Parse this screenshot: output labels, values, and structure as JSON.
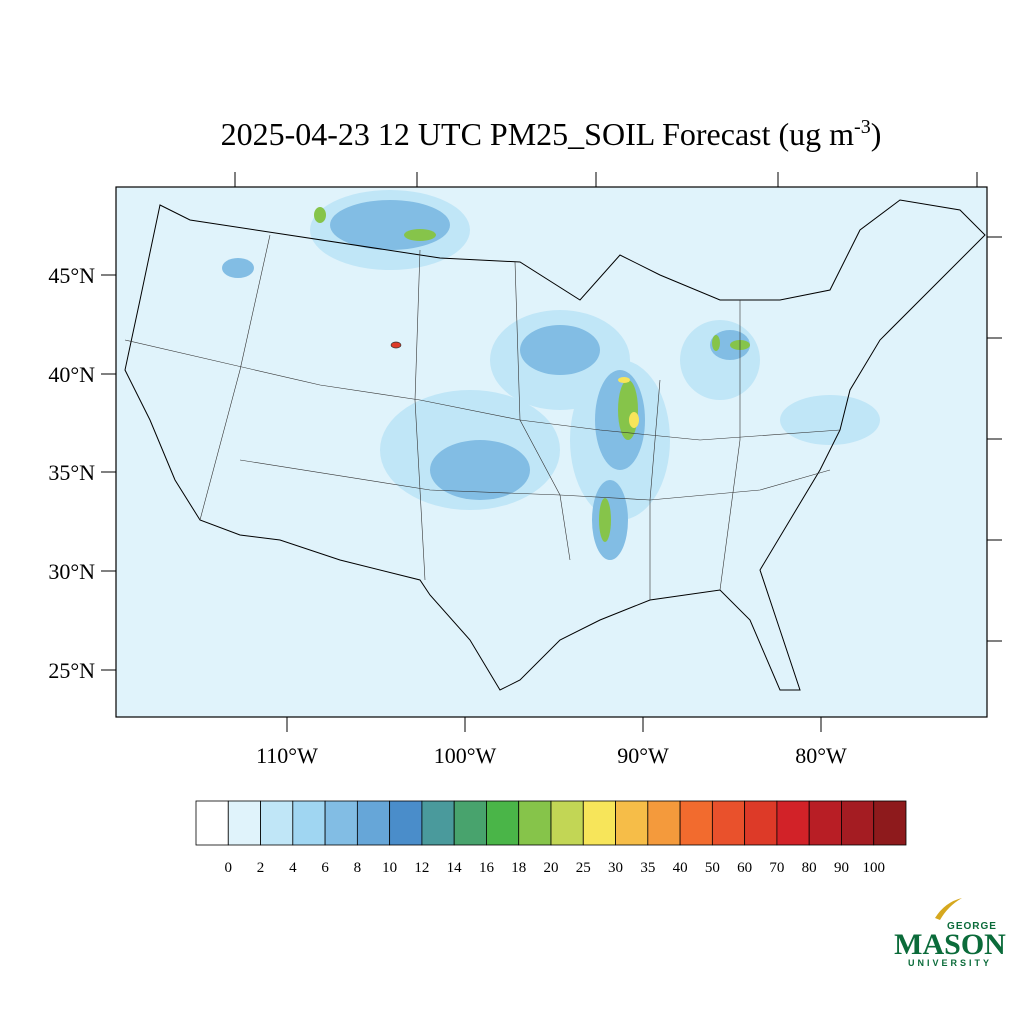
{
  "title": {
    "text": "2025-04-23 12 UTC PM25_SOIL Forecast (ug m",
    "superscript": "-3",
    "close": ")"
  },
  "lat_labels": [
    "45°N",
    "40°N",
    "35°N",
    "30°N",
    "25°N"
  ],
  "lon_labels": [
    "110°W",
    "100°W",
    "90°W",
    "80°W"
  ],
  "colorbar": {
    "levels": [
      0,
      2,
      4,
      6,
      8,
      10,
      12,
      14,
      16,
      18,
      20,
      25,
      30,
      35,
      40,
      50,
      60,
      70,
      80,
      90,
      100
    ],
    "colors": [
      "#ffffff",
      "#e0f3fb",
      "#c0e6f7",
      "#a0d6f2",
      "#82bde4",
      "#66a6d8",
      "#4a8dca",
      "#4a9a9c",
      "#48a36d",
      "#4ab548",
      "#86c44a",
      "#c2d655",
      "#f7e55a",
      "#f6bd48",
      "#f49a3c",
      "#f26b2e",
      "#e9512c",
      "#dd3a28",
      "#d22228",
      "#b81e25",
      "#a41c22",
      "#8e1a1c"
    ]
  },
  "logo": {
    "top": "GEORGE",
    "main": "MASON",
    "bottom": "UNIVERSITY"
  }
}
